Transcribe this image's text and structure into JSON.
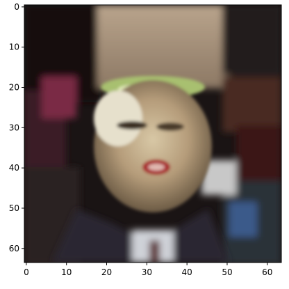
{
  "chart_data": {
    "type": "heatmap",
    "image_description": "Low-resolution 64x64 RGB image of an elderly man's face with open mouth, white/gray hair, dark suit; background dark with colorful noisy artifacts",
    "image_resolution": [
      64,
      64
    ],
    "xlim": [
      -0.5,
      63.5
    ],
    "ylim": [
      63.5,
      -0.5
    ],
    "x_ticks": [
      0,
      10,
      20,
      30,
      40,
      50,
      60
    ],
    "y_ticks": [
      0,
      10,
      20,
      30,
      40,
      50,
      60
    ],
    "title": "",
    "xlabel": "",
    "ylabel": "",
    "grid": false,
    "legend": "none"
  },
  "colors": {
    "background": "#ffffff",
    "axes_edge": "#000000",
    "tick_text": "#000000"
  }
}
